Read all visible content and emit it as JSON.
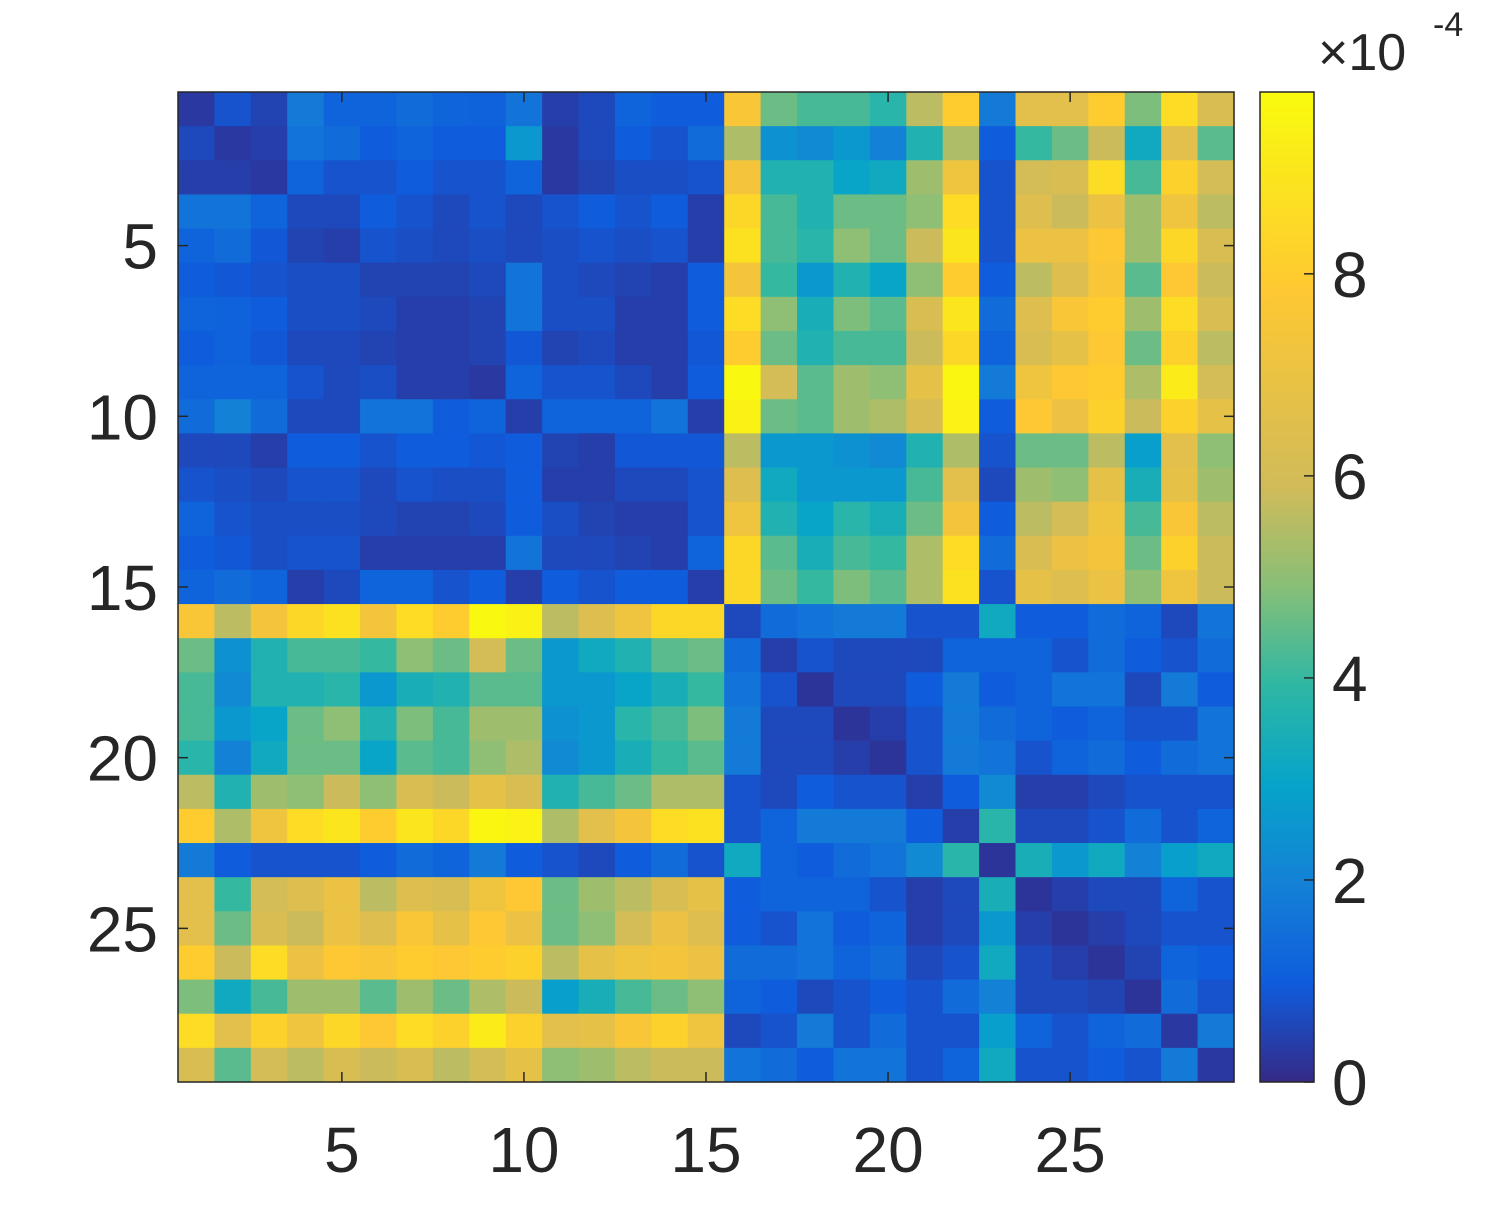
{
  "chart_data": {
    "type": "heatmap",
    "title": "",
    "xlabel": "",
    "ylabel": "",
    "rows": 29,
    "cols": 29,
    "x_ticks": [
      "5",
      "10",
      "15",
      "20",
      "25"
    ],
    "x_tick_values": [
      5,
      10,
      15,
      20,
      25
    ],
    "y_ticks": [
      "5",
      "10",
      "15",
      "20",
      "25"
    ],
    "y_tick_values": [
      5,
      10,
      15,
      20,
      25
    ],
    "colorbar": {
      "ticks": [
        "0",
        "2",
        "4",
        "6",
        "8"
      ],
      "tick_values": [
        0,
        2,
        4,
        6,
        8
      ],
      "range": [
        0,
        9.8
      ],
      "exponent_base": "10",
      "exponent": "-4",
      "colormap": "parula"
    },
    "values_units": "x 1e-4",
    "values": [
      [
        0.3,
        0.8,
        0.5,
        1.8,
        1.2,
        1.2,
        1.4,
        1.2,
        1.1,
        1.6,
        0.4,
        0.6,
        1.2,
        1.0,
        1.0,
        7.6,
        4.6,
        4.2,
        4.2,
        3.8,
        5.6,
        8.0,
        1.8,
        6.6,
        6.6,
        8.0,
        4.8,
        8.6,
        6.2
      ],
      [
        0.6,
        0.3,
        0.4,
        1.6,
        1.4,
        1.0,
        1.2,
        1.0,
        1.0,
        2.6,
        0.3,
        0.6,
        1.0,
        0.8,
        1.4,
        5.4,
        2.4,
        2.2,
        2.6,
        2.0,
        3.6,
        5.4,
        1.0,
        4.0,
        4.6,
        5.8,
        3.2,
        6.6,
        4.4
      ],
      [
        0.4,
        0.4,
        0.3,
        1.2,
        0.8,
        0.8,
        1.0,
        0.8,
        0.8,
        1.2,
        0.3,
        0.5,
        0.7,
        0.7,
        0.8,
        7.4,
        3.6,
        3.6,
        3.0,
        3.2,
        5.2,
        7.2,
        0.8,
        6.0,
        6.2,
        8.6,
        4.2,
        8.2,
        6.0
      ],
      [
        1.6,
        1.6,
        1.2,
        0.6,
        0.6,
        1.0,
        0.8,
        0.6,
        0.8,
        0.6,
        0.8,
        1.0,
        0.8,
        1.0,
        0.4,
        8.4,
        4.2,
        3.6,
        4.6,
        4.6,
        5.0,
        8.6,
        0.8,
        6.4,
        5.8,
        7.0,
        5.2,
        7.2,
        5.6
      ],
      [
        1.2,
        1.4,
        0.9,
        0.5,
        0.4,
        0.8,
        0.7,
        0.6,
        0.7,
        0.6,
        0.7,
        0.8,
        0.7,
        0.8,
        0.4,
        8.8,
        4.2,
        3.8,
        5.0,
        4.6,
        5.8,
        9.0,
        0.8,
        7.0,
        7.0,
        7.8,
        5.2,
        8.4,
        6.2
      ],
      [
        1.0,
        0.9,
        0.8,
        0.7,
        0.7,
        0.5,
        0.5,
        0.5,
        0.6,
        1.6,
        0.7,
        0.6,
        0.5,
        0.4,
        1.0,
        7.4,
        4.0,
        2.6,
        3.6,
        3.0,
        5.0,
        8.0,
        1.0,
        5.6,
        6.4,
        7.6,
        4.4,
        7.8,
        5.8
      ],
      [
        1.2,
        1.1,
        1.0,
        0.7,
        0.7,
        0.6,
        0.4,
        0.4,
        0.5,
        1.6,
        0.7,
        0.7,
        0.4,
        0.4,
        1.0,
        8.6,
        5.0,
        3.4,
        4.8,
        4.4,
        6.2,
        9.0,
        1.4,
        6.4,
        7.6,
        8.0,
        5.2,
        8.6,
        6.2
      ],
      [
        1.0,
        1.1,
        0.9,
        0.6,
        0.6,
        0.5,
        0.4,
        0.4,
        0.5,
        0.9,
        0.5,
        0.6,
        0.4,
        0.4,
        0.9,
        8.0,
        4.6,
        3.6,
        4.2,
        4.2,
        5.8,
        8.4,
        1.2,
        6.2,
        6.8,
        7.8,
        4.6,
        8.2,
        5.6
      ],
      [
        1.2,
        1.2,
        1.2,
        0.8,
        0.6,
        0.7,
        0.4,
        0.4,
        0.3,
        1.2,
        0.8,
        0.8,
        0.6,
        0.4,
        1.0,
        9.7,
        6.0,
        4.4,
        5.2,
        5.0,
        6.8,
        9.6,
        1.8,
        7.2,
        7.8,
        8.0,
        5.4,
        9.2,
        6.0
      ],
      [
        1.4,
        2.0,
        1.4,
        0.6,
        0.6,
        1.6,
        1.6,
        1.0,
        1.2,
        0.4,
        1.2,
        1.2,
        1.2,
        1.6,
        0.4,
        9.4,
        4.6,
        4.4,
        5.2,
        5.4,
        6.2,
        9.5,
        1.0,
        7.8,
        7.0,
        8.2,
        5.8,
        8.2,
        6.8
      ],
      [
        0.6,
        0.6,
        0.4,
        1.0,
        1.0,
        0.8,
        1.0,
        1.0,
        0.9,
        1.0,
        0.5,
        0.4,
        0.9,
        0.9,
        0.9,
        5.6,
        2.6,
        2.6,
        2.4,
        2.2,
        3.6,
        5.4,
        0.8,
        4.6,
        4.6,
        5.6,
        2.8,
        6.6,
        5.0
      ],
      [
        0.8,
        0.7,
        0.6,
        0.8,
        0.8,
        0.6,
        0.8,
        0.7,
        0.7,
        1.0,
        0.4,
        0.4,
        0.6,
        0.6,
        0.8,
        6.4,
        3.2,
        2.6,
        2.6,
        2.6,
        4.2,
        6.6,
        0.6,
        5.2,
        5.0,
        6.8,
        3.4,
        6.8,
        5.2
      ],
      [
        1.2,
        0.8,
        0.7,
        0.7,
        0.7,
        0.6,
        0.5,
        0.5,
        0.6,
        1.0,
        0.7,
        0.5,
        0.4,
        0.4,
        0.8,
        7.2,
        3.6,
        3.0,
        3.8,
        3.4,
        4.6,
        7.4,
        1.0,
        5.6,
        6.0,
        7.2,
        4.2,
        7.6,
        5.6
      ],
      [
        1.0,
        0.9,
        0.7,
        0.8,
        0.8,
        0.4,
        0.4,
        0.4,
        0.4,
        1.6,
        0.6,
        0.6,
        0.5,
        0.4,
        1.2,
        8.4,
        4.4,
        3.4,
        4.2,
        4.0,
        5.4,
        8.6,
        1.4,
        6.2,
        7.0,
        7.4,
        4.6,
        8.2,
        5.8
      ],
      [
        1.2,
        1.4,
        1.2,
        0.4,
        0.6,
        1.2,
        1.2,
        0.8,
        1.0,
        0.4,
        1.0,
        0.8,
        1.0,
        1.0,
        0.4,
        8.4,
        4.6,
        4.0,
        4.8,
        4.4,
        5.4,
        8.8,
        0.8,
        6.8,
        6.4,
        7.0,
        5.0,
        7.2,
        5.8
      ],
      [
        7.6,
        5.6,
        7.4,
        8.4,
        8.8,
        7.4,
        8.6,
        8.0,
        9.7,
        9.4,
        5.6,
        6.4,
        7.2,
        8.4,
        8.4,
        0.6,
        1.4,
        1.6,
        1.8,
        1.8,
        0.8,
        0.8,
        3.2,
        1.0,
        1.0,
        1.4,
        1.2,
        0.6,
        1.6
      ],
      [
        4.6,
        2.4,
        3.6,
        4.2,
        4.2,
        4.0,
        5.0,
        4.6,
        6.0,
        4.6,
        2.6,
        3.2,
        3.6,
        4.4,
        4.6,
        1.4,
        0.4,
        0.8,
        0.6,
        0.6,
        0.6,
        1.2,
        1.2,
        1.2,
        0.8,
        1.4,
        1.0,
        0.8,
        1.4
      ],
      [
        4.2,
        2.2,
        3.6,
        3.6,
        3.8,
        2.6,
        3.4,
        3.6,
        4.4,
        4.4,
        2.6,
        2.6,
        3.0,
        3.4,
        4.0,
        1.6,
        0.8,
        0.2,
        0.6,
        0.6,
        1.0,
        1.8,
        1.0,
        1.2,
        1.6,
        1.6,
        0.6,
        1.8,
        1.0
      ],
      [
        4.2,
        2.6,
        3.0,
        4.6,
        5.0,
        3.6,
        4.8,
        4.2,
        5.2,
        5.2,
        2.4,
        2.6,
        3.8,
        4.2,
        4.8,
        1.8,
        0.6,
        0.6,
        0.2,
        0.4,
        0.8,
        1.8,
        1.4,
        1.2,
        1.0,
        1.2,
        0.8,
        0.8,
        1.6
      ],
      [
        3.8,
        2.0,
        3.2,
        4.6,
        4.6,
        3.0,
        4.4,
        4.2,
        5.0,
        5.4,
        2.2,
        2.6,
        3.4,
        4.0,
        4.4,
        1.8,
        0.6,
        0.6,
        0.4,
        0.2,
        0.8,
        1.8,
        1.6,
        0.8,
        1.2,
        1.4,
        1.0,
        1.4,
        1.6
      ],
      [
        5.6,
        3.6,
        5.2,
        5.0,
        5.8,
        5.0,
        6.2,
        5.8,
        6.8,
        6.2,
        3.6,
        4.2,
        4.6,
        5.4,
        5.4,
        0.8,
        0.6,
        1.0,
        0.8,
        0.8,
        0.4,
        1.0,
        2.2,
        0.4,
        0.4,
        0.6,
        0.8,
        0.8,
        0.8
      ],
      [
        8.0,
        5.4,
        7.2,
        8.6,
        9.0,
        8.0,
        9.0,
        8.4,
        9.6,
        9.5,
        5.4,
        6.6,
        7.4,
        8.6,
        8.8,
        0.8,
        1.2,
        1.8,
        1.8,
        1.8,
        1.0,
        0.4,
        3.8,
        0.6,
        0.6,
        0.8,
        1.4,
        0.8,
        1.2
      ],
      [
        1.8,
        1.0,
        0.8,
        0.8,
        0.8,
        1.0,
        1.4,
        1.2,
        1.8,
        1.0,
        0.8,
        0.6,
        1.0,
        1.4,
        0.8,
        3.2,
        1.2,
        1.0,
        1.4,
        1.6,
        2.2,
        3.8,
        0.2,
        3.4,
        2.6,
        3.2,
        2.0,
        2.8,
        3.2
      ],
      [
        6.6,
        4.0,
        6.0,
        6.4,
        7.0,
        5.6,
        6.4,
        6.2,
        7.2,
        7.8,
        4.6,
        5.2,
        5.6,
        6.2,
        6.8,
        1.0,
        1.2,
        1.2,
        1.2,
        0.8,
        0.4,
        0.6,
        3.4,
        0.2,
        0.4,
        0.6,
        0.6,
        1.2,
        0.8
      ],
      [
        6.6,
        4.6,
        6.2,
        5.8,
        7.0,
        6.4,
        7.6,
        6.8,
        7.8,
        7.0,
        4.6,
        5.0,
        6.0,
        7.0,
        6.4,
        1.0,
        0.8,
        1.6,
        1.0,
        1.2,
        0.4,
        0.6,
        2.6,
        0.4,
        0.2,
        0.4,
        0.6,
        0.8,
        0.8
      ],
      [
        8.0,
        5.8,
        8.6,
        7.0,
        7.8,
        7.6,
        8.0,
        7.8,
        8.0,
        8.2,
        5.6,
        6.8,
        7.2,
        7.4,
        7.0,
        1.4,
        1.4,
        1.6,
        1.2,
        1.4,
        0.6,
        0.8,
        3.2,
        0.6,
        0.4,
        0.2,
        0.5,
        1.2,
        1.0
      ],
      [
        4.8,
        3.2,
        4.2,
        5.2,
        5.2,
        4.4,
        5.2,
        4.6,
        5.4,
        5.8,
        2.8,
        3.4,
        4.2,
        4.6,
        5.0,
        1.2,
        1.0,
        0.6,
        0.8,
        1.0,
        0.8,
        1.4,
        2.0,
        0.6,
        0.6,
        0.5,
        0.2,
        1.4,
        0.8
      ],
      [
        8.6,
        6.6,
        8.2,
        7.2,
        8.4,
        7.8,
        8.6,
        8.2,
        9.2,
        8.2,
        6.6,
        6.8,
        7.6,
        8.2,
        7.2,
        0.6,
        0.8,
        1.8,
        0.8,
        1.4,
        0.8,
        0.8,
        2.8,
        1.2,
        0.8,
        1.2,
        1.4,
        0.3,
        1.8
      ],
      [
        6.2,
        4.4,
        6.0,
        5.6,
        6.2,
        5.8,
        6.2,
        5.6,
        6.0,
        6.8,
        5.0,
        5.2,
        5.6,
        5.8,
        5.8,
        1.6,
        1.4,
        1.0,
        1.6,
        1.6,
        0.8,
        1.2,
        3.2,
        0.8,
        0.8,
        1.0,
        0.8,
        1.8,
        0.3
      ]
    ]
  }
}
